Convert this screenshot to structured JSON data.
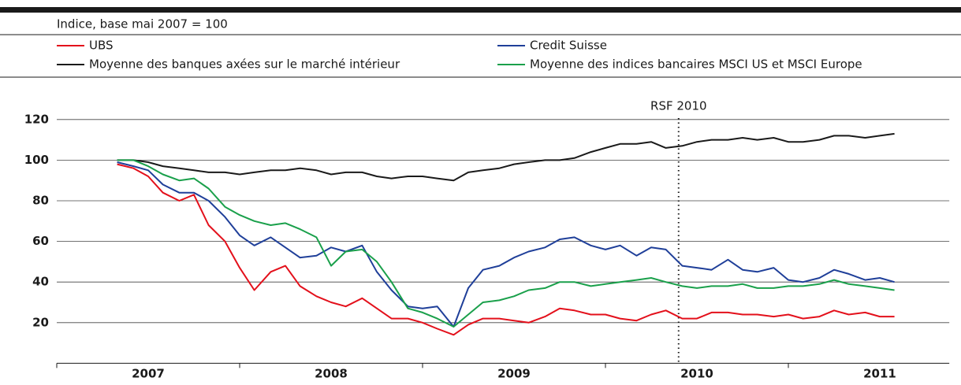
{
  "chart_data": {
    "type": "line",
    "subtitle": "Indice, base mai 2007 = 100",
    "categories": [
      "2007",
      "2008",
      "2009",
      "2010",
      "2011"
    ],
    "x": [
      2007.33,
      2007.42,
      2007.5,
      2007.58,
      2007.67,
      2007.75,
      2007.83,
      2007.92,
      2008,
      2008.08,
      2008.17,
      2008.25,
      2008.33,
      2008.42,
      2008.5,
      2008.58,
      2008.67,
      2008.75,
      2008.83,
      2008.92,
      2009,
      2009.08,
      2009.17,
      2009.25,
      2009.33,
      2009.42,
      2009.5,
      2009.58,
      2009.67,
      2009.75,
      2009.83,
      2009.92,
      2010,
      2010.08,
      2010.17,
      2010.25,
      2010.33,
      2010.42,
      2010.5,
      2010.58,
      2010.67,
      2010.75,
      2010.83,
      2010.92,
      2011,
      2011.08,
      2011.17,
      2011.25,
      2011.33,
      2011.42,
      2011.5,
      2011.58
    ],
    "series": [
      {
        "name": "UBS",
        "color": "#e3101b",
        "values": [
          98,
          96,
          92,
          84,
          80,
          83,
          68,
          60,
          47,
          36,
          45,
          48,
          38,
          33,
          30,
          28,
          32,
          27,
          22,
          22,
          20,
          17,
          14,
          19,
          22,
          22,
          21,
          20,
          23,
          27,
          26,
          24,
          24,
          22,
          21,
          24,
          26,
          22,
          22,
          25,
          25,
          24,
          24,
          23,
          24,
          22,
          23,
          26,
          24,
          25,
          23,
          23
        ]
      },
      {
        "name": "Credit Suisse",
        "color": "#1f3f99",
        "values": [
          99,
          97,
          95,
          88,
          84,
          84,
          80,
          72,
          63,
          58,
          62,
          57,
          52,
          53,
          57,
          55,
          58,
          45,
          36,
          28,
          27,
          28,
          18,
          37,
          46,
          48,
          52,
          55,
          57,
          61,
          62,
          58,
          56,
          58,
          53,
          57,
          56,
          48,
          47,
          46,
          51,
          46,
          45,
          47,
          41,
          40,
          42,
          46,
          44,
          41,
          42,
          40
        ]
      },
      {
        "name": "Moyenne des banques axées sur le marché intérieur",
        "color": "#1a1a1a",
        "values": [
          100,
          100,
          99,
          97,
          96,
          95,
          94,
          94,
          93,
          94,
          95,
          95,
          96,
          95,
          93,
          94,
          94,
          92,
          91,
          92,
          92,
          91,
          90,
          94,
          95,
          96,
          98,
          99,
          100,
          100,
          101,
          104,
          106,
          108,
          108,
          109,
          106,
          107,
          109,
          110,
          110,
          111,
          110,
          111,
          109,
          109,
          110,
          112,
          112,
          111,
          112,
          113
        ]
      },
      {
        "name": "Moyenne des indices bancaires MSCI US et MSCI Europe",
        "color": "#1aa04b",
        "values": [
          100,
          100,
          97,
          93,
          90,
          91,
          86,
          77,
          73,
          70,
          68,
          69,
          66,
          62,
          48,
          55,
          56,
          50,
          40,
          27,
          25,
          22,
          18,
          24,
          30,
          31,
          33,
          36,
          37,
          40,
          40,
          38,
          39,
          40,
          41,
          42,
          40,
          38,
          37,
          38,
          38,
          39,
          37,
          37,
          38,
          38,
          39,
          41,
          39,
          38,
          37,
          36
        ]
      }
    ],
    "xlim": [
      2007,
      2011.88
    ],
    "xticks": [
      2007,
      2008,
      2009,
      2010,
      2011
    ],
    "ylim": [
      0,
      130
    ],
    "yticks": [
      20,
      40,
      60,
      80,
      100,
      120
    ],
    "grid": true,
    "annotation": {
      "text": "RSF 2010",
      "x": 2010.4
    }
  }
}
